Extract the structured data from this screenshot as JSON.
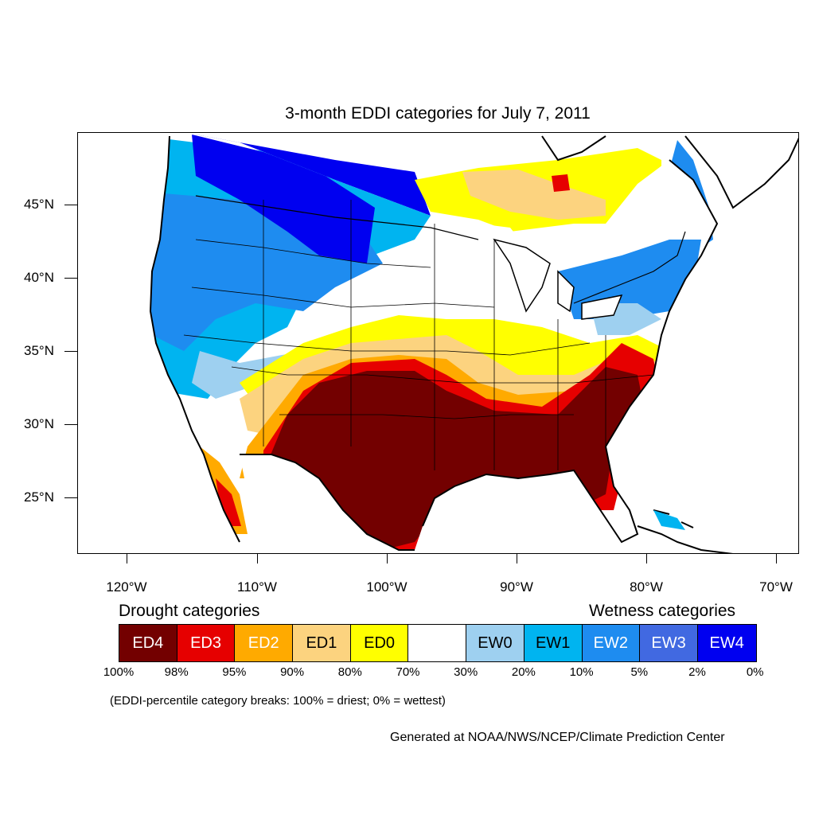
{
  "title": "3-month EDDI categories for July 7, 2011",
  "lat_labels": [
    "45°N",
    "40°N",
    "35°N",
    "30°N",
    "25°N"
  ],
  "lon_labels": [
    "120°W",
    "110°W",
    "100°W",
    "90°W",
    "80°W",
    "70°W"
  ],
  "legend": {
    "drought_heading": "Drought categories",
    "wetness_heading": "Wetness categories",
    "categories": [
      {
        "label": "ED4",
        "color": "#730000"
      },
      {
        "label": "ED3",
        "color": "#e60000"
      },
      {
        "label": "ED2",
        "color": "#ffaa00"
      },
      {
        "label": "ED1",
        "color": "#fcd37f"
      },
      {
        "label": "ED0",
        "color": "#ffff00"
      },
      {
        "label": "",
        "color": "#ffffff"
      },
      {
        "label": "EW0",
        "color": "#9ed0f0"
      },
      {
        "label": "EW1",
        "color": "#00b4f0"
      },
      {
        "label": "EW2",
        "color": "#1e8cf0"
      },
      {
        "label": "EW3",
        "color": "#4169e1"
      },
      {
        "label": "EW4",
        "color": "#0000f0"
      }
    ],
    "breaks": [
      "100%",
      "98%",
      "95%",
      "90%",
      "80%",
      "70%",
      "30%",
      "20%",
      "10%",
      "5%",
      "2%",
      "0%"
    ]
  },
  "note": "(EDDI-percentile category breaks: 100% = driest; 0% = wettest)",
  "credit": "Generated at NOAA/NWS/NCEP/Climate Prediction Center"
}
